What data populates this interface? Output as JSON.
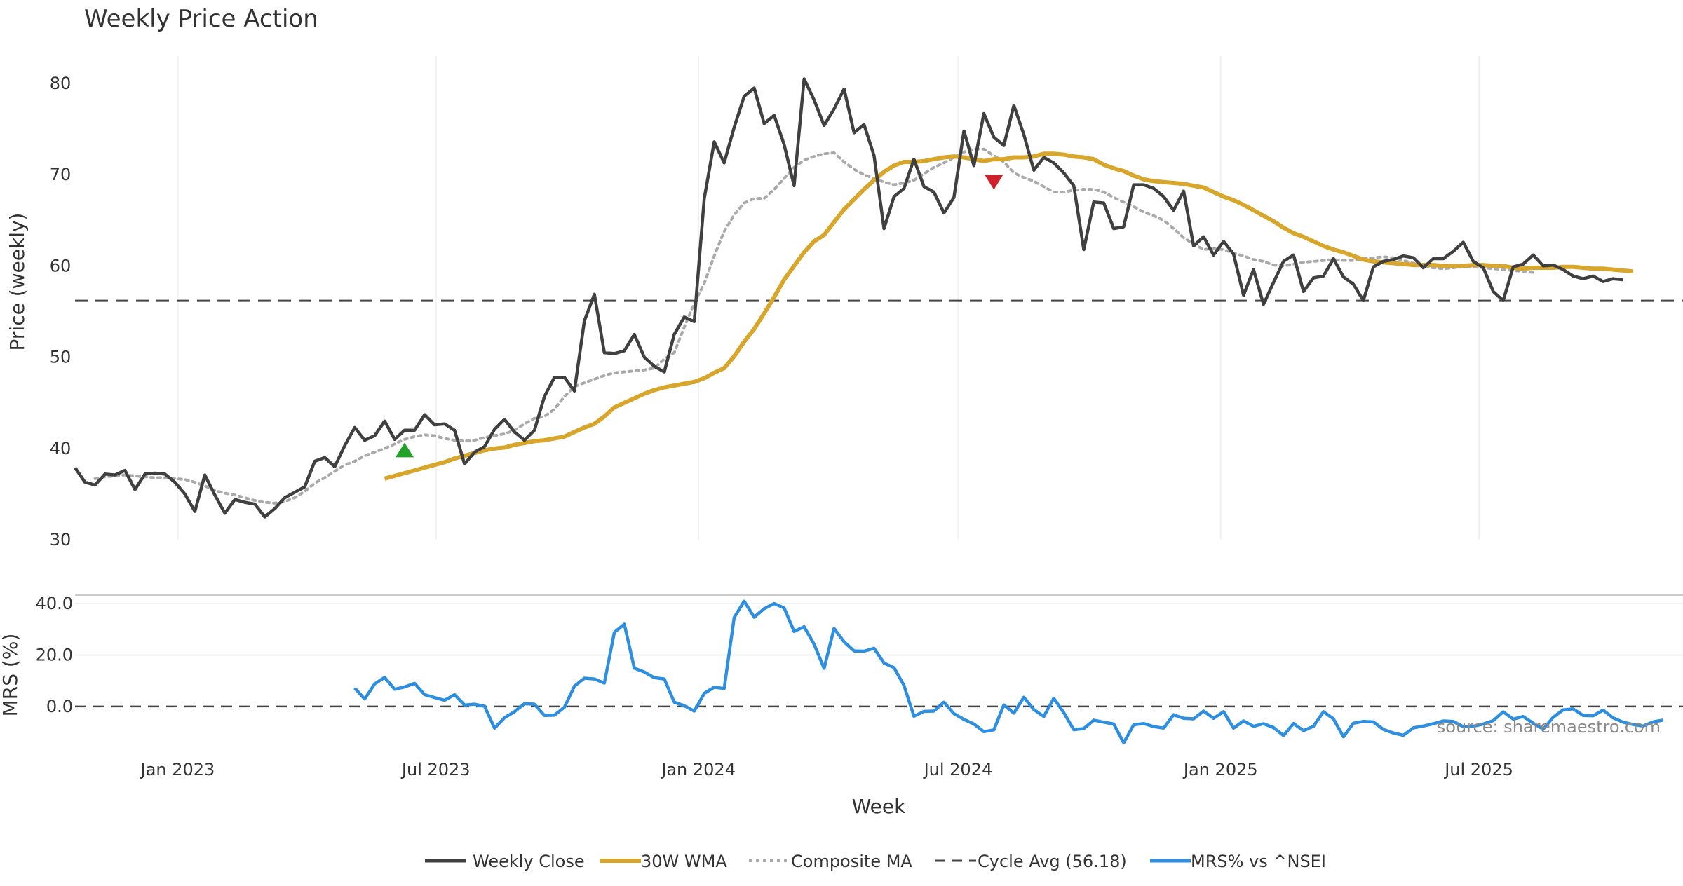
{
  "chart_data": {
    "type": "line",
    "title": "Weekly Price Action",
    "xlabel": "Week",
    "source": "source: sharemaestro.com",
    "x_ticks": [
      "Jan 2023",
      "Jul 2023",
      "Jan 2024",
      "Jul 2024",
      "Jan 2025",
      "Jul 2025"
    ],
    "x_range": [
      "2022-10-21",
      "2025-11-21"
    ],
    "price_panel": {
      "ylabel": "Price (weekly)",
      "ylim": [
        30,
        83
      ],
      "yticks": [
        "30",
        "40",
        "50",
        "60",
        "70",
        "80"
      ],
      "grid": "vertical"
    },
    "mrs_panel": {
      "ylabel": "MRS (%)",
      "ylim": [
        -15,
        43
      ],
      "yticks": [
        "0.0",
        "20.0",
        "40.0"
      ],
      "zero_line": 0
    },
    "colors": {
      "close": "#404040",
      "wma": "#d9a62c",
      "composite": "#aaaaaa",
      "cycle": "#444444",
      "mrs": "#2e8fe0",
      "buy": "#22a02a",
      "sell": "#d0202a"
    },
    "cycle_avg": 56.18,
    "series": [
      {
        "name": "Weekly Close",
        "key": "close",
        "start": "2022-10-21",
        "values": [
          37.9,
          36.3,
          36.0,
          37.2,
          37.1,
          37.6,
          35.5,
          37.2,
          37.3,
          37.2,
          36.3,
          35.0,
          33.1,
          37.1,
          34.9,
          32.9,
          34.4,
          34.1,
          33.9,
          32.5,
          33.4,
          34.6,
          35.2,
          35.8,
          38.6,
          39.0,
          38.0,
          40.3,
          42.3,
          40.9,
          41.4,
          43.0,
          41.0,
          42.0,
          42.0,
          43.7,
          42.6,
          42.7,
          42.0,
          38.3,
          39.6,
          40.2,
          42.1,
          43.2,
          41.8,
          40.9,
          42.0,
          45.7,
          47.8,
          47.8,
          46.3,
          54.0,
          56.9,
          50.5,
          50.4,
          50.7,
          52.5,
          50.0,
          49.0,
          48.4,
          52.5,
          54.4,
          53.9,
          67.4,
          73.6,
          71.3,
          75.2,
          78.6,
          79.5,
          75.6,
          76.5,
          73.3,
          68.8,
          80.5,
          78.2,
          75.4,
          77.2,
          79.4,
          74.6,
          75.5,
          72.1,
          64.1,
          67.6,
          68.5,
          71.7,
          68.7,
          68.1,
          65.8,
          67.5,
          74.8,
          71.0,
          76.7,
          74.1,
          73.2,
          77.6,
          74.4,
          70.5,
          71.9,
          71.3,
          70.2,
          68.8,
          61.8,
          67.0,
          66.9,
          64.1,
          64.3,
          68.9,
          68.9,
          68.5,
          67.6,
          66.1,
          68.2,
          62.2,
          63.2,
          61.2,
          62.7,
          61.3,
          56.8,
          59.6,
          55.8,
          58.2,
          60.5,
          61.2,
          57.2,
          58.7,
          58.9,
          60.8,
          58.8,
          58.0,
          56.2,
          59.9,
          60.5,
          60.7,
          61.1,
          60.9,
          59.8,
          60.8,
          60.8,
          61.6,
          62.6,
          60.5,
          59.8,
          57.2,
          56.2,
          59.9,
          60.2,
          61.2,
          60.0,
          60.1,
          59.6,
          58.9,
          58.6,
          58.9,
          58.3,
          58.6,
          58.5
        ]
      },
      {
        "name": "30W WMA",
        "key": "wma",
        "start": "2023-05-26",
        "values": [
          36.7,
          37.0,
          37.3,
          37.6,
          37.9,
          38.2,
          38.5,
          38.9,
          39.2,
          39.5,
          39.8,
          40.0,
          40.1,
          40.4,
          40.6,
          40.8,
          40.9,
          41.1,
          41.3,
          41.8,
          42.3,
          42.7,
          43.5,
          44.5,
          45.0,
          45.5,
          46.0,
          46.4,
          46.7,
          46.9,
          47.1,
          47.3,
          47.7,
          48.3,
          48.8,
          50.1,
          51.7,
          53.1,
          54.8,
          56.6,
          58.5,
          60.0,
          61.5,
          62.7,
          63.4,
          64.8,
          66.2,
          67.3,
          68.4,
          69.4,
          70.3,
          71.0,
          71.4,
          71.4,
          71.5,
          71.7,
          71.9,
          72.0,
          71.9,
          71.7,
          71.5,
          71.7,
          71.7,
          71.9,
          71.9,
          72.0,
          72.3,
          72.3,
          72.2,
          72.0,
          71.9,
          71.7,
          71.1,
          70.7,
          70.4,
          69.9,
          69.5,
          69.3,
          69.2,
          69.1,
          69.0,
          68.8,
          68.6,
          68.1,
          67.6,
          67.2,
          66.7,
          66.1,
          65.5,
          64.9,
          64.2,
          63.6,
          63.2,
          62.7,
          62.2,
          61.8,
          61.5,
          61.1,
          60.7,
          60.5,
          60.4,
          60.3,
          60.2,
          60.1,
          60.1,
          60.1,
          60.0,
          60.0,
          60.0,
          60.1,
          60.1,
          60.0,
          60.0,
          59.8,
          59.7,
          59.8,
          59.8,
          59.8,
          59.9,
          59.9,
          59.8,
          59.7,
          59.7,
          59.6,
          59.5,
          59.4
        ]
      },
      {
        "name": "Composite MA",
        "key": "composite",
        "start": "2022-11-04",
        "values": [
          36.7,
          36.9,
          37.0,
          37.1,
          37.0,
          36.9,
          36.8,
          36.8,
          36.7,
          36.6,
          36.3,
          35.9,
          35.4,
          35.1,
          34.9,
          34.6,
          34.3,
          34.1,
          34.0,
          34.2,
          34.6,
          35.3,
          36.2,
          36.8,
          37.5,
          38.2,
          38.6,
          39.2,
          39.6,
          40.0,
          40.5,
          41.0,
          41.3,
          41.5,
          41.4,
          41.1,
          40.9,
          40.8,
          40.9,
          41.2,
          41.4,
          41.6,
          42.0,
          42.7,
          43.3,
          43.5,
          44.3,
          45.7,
          46.8,
          47.2,
          47.6,
          48.0,
          48.3,
          48.4,
          48.5,
          48.6,
          48.8,
          49.8,
          50.5,
          53.3,
          55.9,
          58.1,
          61.1,
          63.8,
          65.6,
          66.9,
          67.4,
          67.4,
          68.4,
          69.6,
          70.8,
          71.6,
          72.0,
          72.3,
          72.4,
          71.4,
          70.6,
          70.0,
          69.6,
          69.2,
          68.9,
          69.1,
          69.4,
          70.1,
          70.8,
          71.3,
          71.9,
          72.5,
          72.8,
          72.8,
          72.1,
          71.4,
          70.2,
          69.7,
          69.3,
          68.7,
          68.1,
          68.1,
          68.3,
          68.4,
          68.4,
          68.1,
          67.5,
          67.0,
          66.5,
          65.9,
          65.5,
          65.0,
          64.1,
          63.1,
          62.4,
          61.8,
          61.9,
          61.8,
          61.4,
          61.1,
          60.7,
          60.5,
          60.1,
          60.0,
          60.2,
          60.4,
          60.5,
          60.6,
          60.7,
          60.6,
          60.6,
          60.8,
          60.9,
          61.0,
          60.9,
          60.6,
          60.3,
          60.0,
          59.8,
          59.7,
          59.8,
          59.9,
          59.9,
          59.8,
          59.7,
          59.6,
          59.5,
          59.4,
          59.3
        ]
      },
      {
        "name": "Cycle Avg (56.18)",
        "key": "cycle"
      },
      {
        "name": "MRS% vs ^NSEI",
        "key": "mrs",
        "start": "2023-05-05",
        "values": [
          7.2,
          2.9,
          8.8,
          11.3,
          6.7,
          7.6,
          9.0,
          4.6,
          3.5,
          2.4,
          4.6,
          0.6,
          0.9,
          0.1,
          -8.4,
          -4.4,
          -2.0,
          1.1,
          0.9,
          -3.5,
          -3.4,
          -0.3,
          7.9,
          11.0,
          10.7,
          9.1,
          28.8,
          32.0,
          14.9,
          13.4,
          11.2,
          10.7,
          1.7,
          0.3,
          -1.8,
          5.1,
          7.5,
          7.0,
          34.6,
          40.9,
          34.7,
          38.0,
          40.0,
          38.3,
          29.2,
          31.0,
          24.2,
          14.8,
          30.3,
          25.1,
          21.6,
          21.5,
          22.6,
          16.9,
          15.1,
          8.2,
          -3.8,
          -1.9,
          -1.8,
          1.7,
          -2.8,
          -5.0,
          -6.8,
          -9.8,
          -9.1,
          0.6,
          -2.6,
          3.6,
          -1.2,
          -3.9,
          3.2,
          -2.4,
          -9.0,
          -8.6,
          -5.3,
          -6.1,
          -6.8,
          -14.1,
          -7.1,
          -6.6,
          -7.8,
          -8.4,
          -3.2,
          -4.6,
          -4.8,
          -1.8,
          -4.6,
          -2.0,
          -8.4,
          -5.6,
          -7.7,
          -6.7,
          -8.2,
          -11.3,
          -6.6,
          -9.4,
          -7.7,
          -2.0,
          -4.8,
          -11.8,
          -6.5,
          -5.8,
          -6.0,
          -8.9,
          -10.3,
          -11.2,
          -8.3,
          -7.6,
          -6.7,
          -5.6,
          -5.8,
          -7.9,
          -7.7,
          -6.8,
          -5.5,
          -2.1,
          -4.9,
          -3.9,
          -6.5,
          -8.8,
          -4.2,
          -1.3,
          -0.9,
          -3.5,
          -3.6,
          -1.4,
          -4.4,
          -6.1,
          -7.0,
          -7.6,
          -6.0,
          -5.3
        ]
      }
    ],
    "markers": [
      {
        "type": "buy",
        "date": "2023-06-09",
        "value": 39.8
      },
      {
        "type": "sell",
        "date": "2024-07-26",
        "value": 69.2
      }
    ],
    "legend": [
      {
        "label": "Weekly Close",
        "key": "close"
      },
      {
        "label": "30W WMA",
        "key": "wma"
      },
      {
        "label": "Composite MA",
        "key": "composite"
      },
      {
        "label": "Cycle Avg (56.18)",
        "key": "cycle"
      },
      {
        "label": "MRS% vs ^NSEI",
        "key": "mrs"
      }
    ],
    "legend_position": "bottom"
  }
}
